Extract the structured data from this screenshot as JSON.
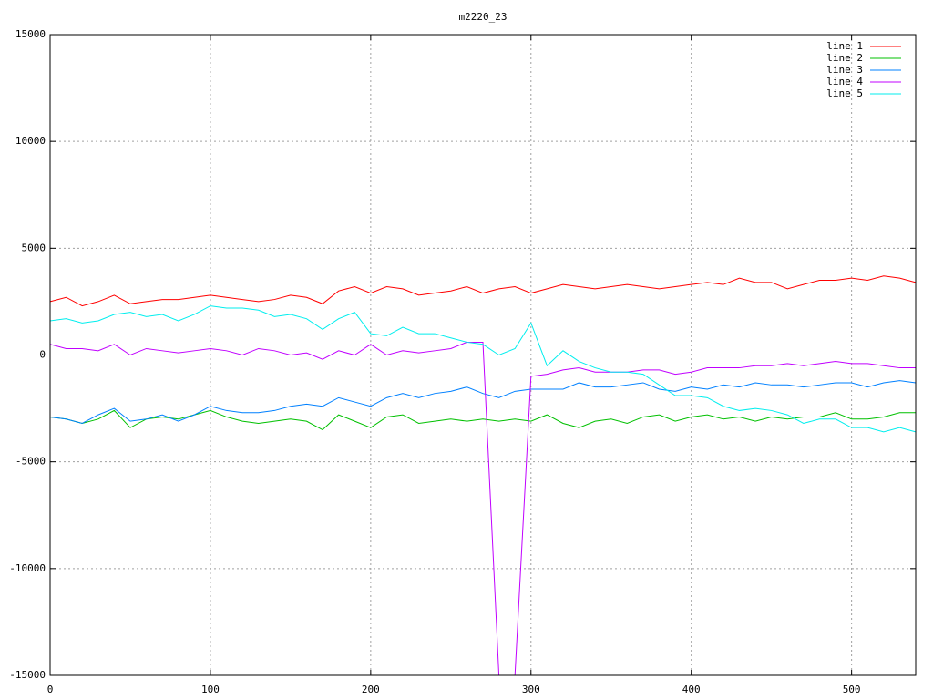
{
  "chart_data": {
    "type": "line",
    "title": "m2220_23",
    "x": [
      0,
      10,
      20,
      30,
      40,
      50,
      60,
      70,
      80,
      90,
      100,
      110,
      120,
      130,
      140,
      150,
      160,
      170,
      180,
      190,
      200,
      210,
      220,
      230,
      240,
      250,
      260,
      270,
      280,
      290,
      300,
      310,
      320,
      330,
      340,
      350,
      360,
      370,
      380,
      390,
      400,
      410,
      420,
      430,
      440,
      450,
      460,
      470,
      480,
      490,
      500,
      510,
      520,
      530,
      540
    ],
    "series": [
      {
        "name": "line 1",
        "color": "#ff0000",
        "values": [
          2500,
          2700,
          2300,
          2500,
          2800,
          2400,
          2500,
          2600,
          2600,
          2700,
          2800,
          2700,
          2600,
          2500,
          2600,
          2800,
          2700,
          2400,
          3000,
          3200,
          2900,
          3200,
          3100,
          2800,
          2900,
          3000,
          3200,
          2900,
          3100,
          3200,
          2900,
          3100,
          3300,
          3200,
          3100,
          3200,
          3300,
          3200,
          3100,
          3200,
          3300,
          3400,
          3300,
          3600,
          3400,
          3400,
          3100,
          3300,
          3500,
          3500,
          3600,
          3500,
          3700,
          3600,
          3400
        ]
      },
      {
        "name": "line 2",
        "color": "#00c000",
        "values": [
          -2900,
          -3000,
          -3200,
          -3000,
          -2600,
          -3400,
          -3000,
          -2900,
          -3000,
          -2800,
          -2600,
          -2900,
          -3100,
          -3200,
          -3100,
          -3000,
          -3100,
          -3500,
          -2800,
          -3100,
          -3400,
          -2900,
          -2800,
          -3200,
          -3100,
          -3000,
          -3100,
          -3000,
          -3100,
          -3000,
          -3100,
          -2800,
          -3200,
          -3400,
          -3100,
          -3000,
          -3200,
          -2900,
          -2800,
          -3100,
          -2900,
          -2800,
          -3000,
          -2900,
          -3100,
          -2900,
          -3000,
          -2900,
          -2900,
          -2700,
          -3000,
          -3000,
          -2900,
          -2700,
          -2700
        ]
      },
      {
        "name": "line 3",
        "color": "#0080ff",
        "values": [
          -2900,
          -3000,
          -3200,
          -2800,
          -2500,
          -3100,
          -3000,
          -2800,
          -3100,
          -2800,
          -2400,
          -2600,
          -2700,
          -2700,
          -2600,
          -2400,
          -2300,
          -2400,
          -2000,
          -2200,
          -2400,
          -2000,
          -1800,
          -2000,
          -1800,
          -1700,
          -1500,
          -1800,
          -2000,
          -1700,
          -1600,
          -1600,
          -1600,
          -1300,
          -1500,
          -1500,
          -1400,
          -1300,
          -1600,
          -1700,
          -1500,
          -1600,
          -1400,
          -1500,
          -1300,
          -1400,
          -1400,
          -1500,
          -1400,
          -1300,
          -1300,
          -1500,
          -1300,
          -1200,
          -1300
        ]
      },
      {
        "name": "line 4",
        "color": "#c000ff",
        "values": [
          500,
          300,
          300,
          200,
          500,
          0,
          300,
          200,
          100,
          200,
          300,
          200,
          0,
          300,
          200,
          0,
          100,
          -200,
          200,
          0,
          500,
          0,
          200,
          100,
          200,
          300,
          600,
          600,
          -15000,
          -15000,
          -1000,
          -900,
          -700,
          -600,
          -800,
          -800,
          -800,
          -700,
          -700,
          -900,
          -800,
          -600,
          -600,
          -600,
          -500,
          -500,
          -400,
          -500,
          -400,
          -300,
          -400,
          -400,
          -500,
          -600,
          -600
        ]
      },
      {
        "name": "line 5",
        "color": "#00eeee",
        "values": [
          1600,
          1700,
          1500,
          1600,
          1900,
          2000,
          1800,
          1900,
          1600,
          1900,
          2300,
          2200,
          2200,
          2100,
          1800,
          1900,
          1700,
          1200,
          1700,
          2000,
          1000,
          900,
          1300,
          1000,
          1000,
          800,
          600,
          500,
          0,
          300,
          1500,
          -500,
          200,
          -300,
          -600,
          -800,
          -800,
          -900,
          -1400,
          -1900,
          -1900,
          -2000,
          -2400,
          -2600,
          -2500,
          -2600,
          -2800,
          -3200,
          -3000,
          -3000,
          -3400,
          -3400,
          -3600,
          -3400,
          -3600
        ]
      }
    ],
    "xlim": [
      0,
      540
    ],
    "ylim": [
      -15000,
      15000
    ],
    "xticks": [
      0,
      100,
      200,
      300,
      400,
      500
    ],
    "yticks": [
      -15000,
      -10000,
      -5000,
      0,
      5000,
      10000,
      15000
    ],
    "grid": true,
    "legend": "top-right"
  }
}
